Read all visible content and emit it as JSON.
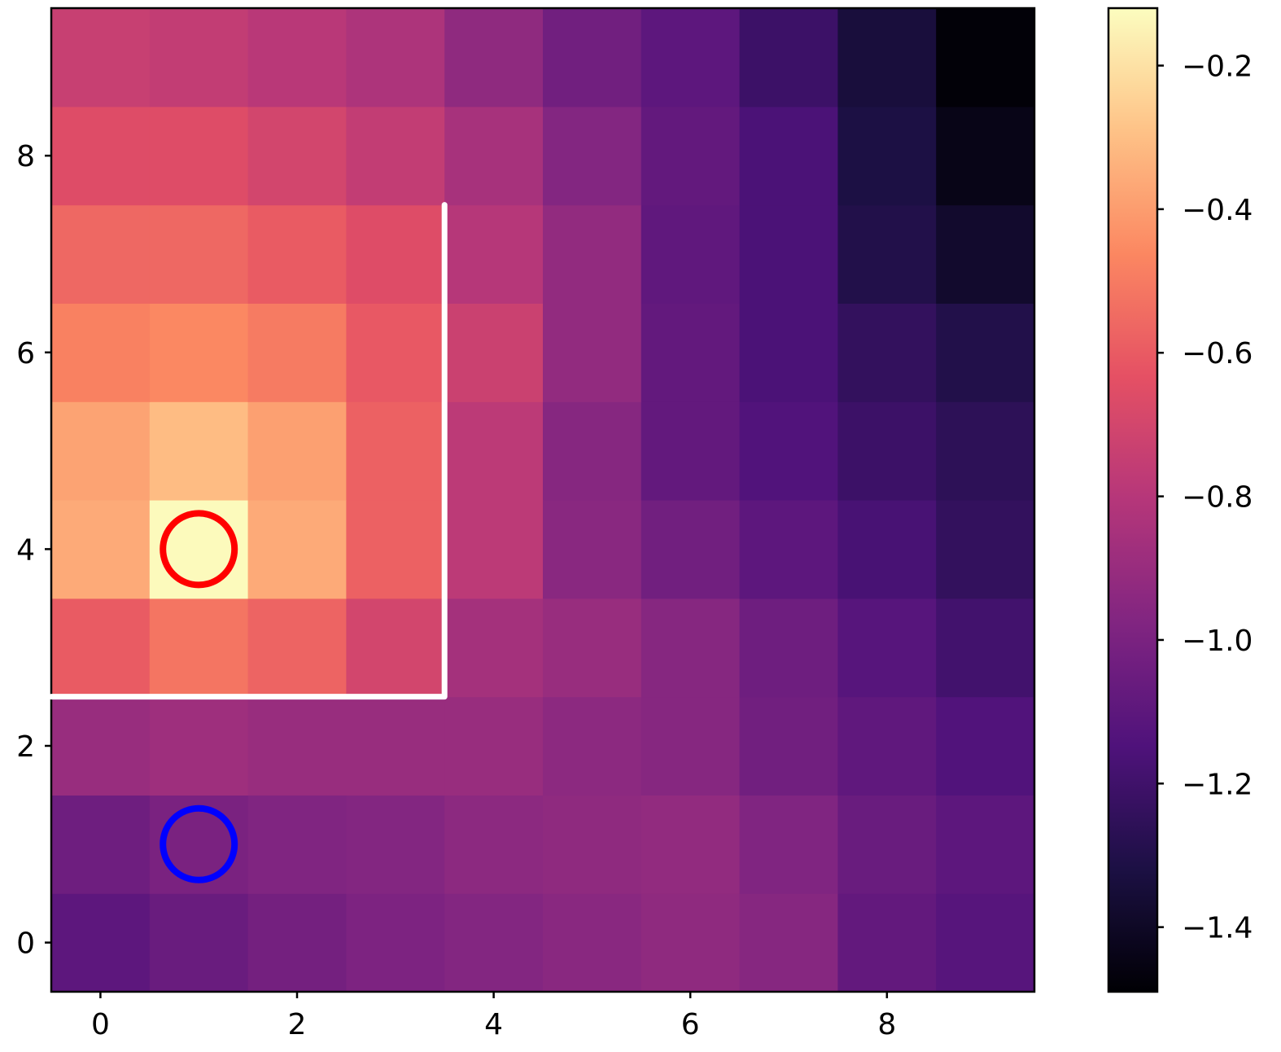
{
  "chart_data": {
    "type": "heatmap",
    "colormap": "magma",
    "x": [
      0,
      1,
      2,
      3,
      4,
      5,
      6,
      7,
      8,
      9
    ],
    "y": [
      0,
      1,
      2,
      3,
      4,
      5,
      6,
      7,
      8,
      9
    ],
    "values": [
      [
        -1.1,
        -1.06,
        -1.02,
        -0.99,
        -0.97,
        -0.95,
        -0.93,
        -0.96,
        -1.08,
        -1.12
      ],
      [
        -1.04,
        -1.0,
        -0.98,
        -0.97,
        -0.94,
        -0.93,
        -0.92,
        -0.98,
        -1.06,
        -1.1
      ],
      [
        -0.9,
        -0.88,
        -0.9,
        -0.9,
        -0.9,
        -0.94,
        -0.96,
        -1.03,
        -1.09,
        -1.14
      ],
      [
        -0.6,
        -0.52,
        -0.57,
        -0.7,
        -0.86,
        -0.9,
        -0.96,
        -1.04,
        -1.12,
        -1.19
      ],
      [
        -0.36,
        -0.13,
        -0.36,
        -0.58,
        -0.78,
        -0.95,
        -1.03,
        -1.1,
        -1.17,
        -1.24
      ],
      [
        -0.38,
        -0.31,
        -0.39,
        -0.58,
        -0.78,
        -0.96,
        -1.08,
        -1.14,
        -1.21,
        -1.26
      ],
      [
        -0.48,
        -0.46,
        -0.5,
        -0.61,
        -0.73,
        -0.92,
        -1.08,
        -1.16,
        -1.24,
        -1.3
      ],
      [
        -0.56,
        -0.56,
        -0.6,
        -0.66,
        -0.8,
        -0.92,
        -1.09,
        -1.16,
        -1.3,
        -1.38
      ],
      [
        -0.66,
        -0.66,
        -0.7,
        -0.76,
        -0.85,
        -0.97,
        -1.08,
        -1.16,
        -1.32,
        -1.44
      ],
      [
        -0.74,
        -0.76,
        -0.79,
        -0.83,
        -0.93,
        -1.03,
        -1.1,
        -1.21,
        -1.34,
        -1.48
      ]
    ],
    "xlim": [
      -0.5,
      9.5
    ],
    "ylim": [
      -0.5,
      9.5
    ],
    "xticks": [
      0,
      2,
      4,
      6,
      8
    ],
    "yticks": [
      0,
      2,
      4,
      6,
      8
    ],
    "tick_labels": [
      "0",
      "2",
      "4",
      "6",
      "8"
    ],
    "colorbar": {
      "vmin": -1.49,
      "vmax": -0.12,
      "ticks": [
        -0.2,
        -0.4,
        -0.6,
        -0.8,
        -1.0,
        -1.2,
        -1.4
      ],
      "tick_labels": [
        "−0.2",
        "−0.4",
        "−0.6",
        "−0.8",
        "−1.0",
        "−1.2",
        "−1.4"
      ]
    },
    "boundary": {
      "color": "#ffffff",
      "points": [
        [
          -0.5,
          2.5
        ],
        [
          3.5,
          2.5
        ],
        [
          3.5,
          7.5
        ]
      ]
    },
    "markers": [
      {
        "x": 1,
        "y": 4,
        "color": "#ff0000",
        "shape": "circle"
      },
      {
        "x": 1,
        "y": 1,
        "color": "#0000ff",
        "shape": "circle"
      }
    ],
    "title": "",
    "xlabel": "",
    "ylabel": ""
  }
}
